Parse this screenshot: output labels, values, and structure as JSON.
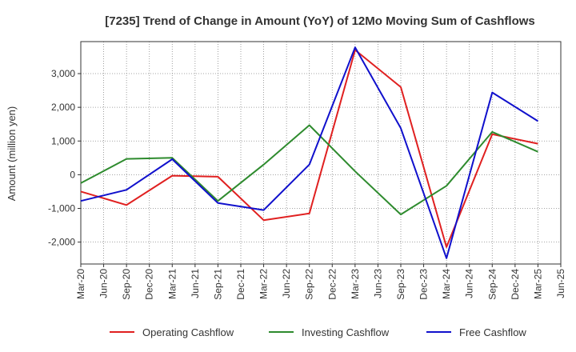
{
  "chart_data": {
    "type": "line",
    "title": "[7235]  Trend of Change in Amount (YoY) of 12Mo Moving Sum of Cashflows",
    "xlabel": "",
    "ylabel": "Amount (million yen)",
    "ylim": [
      -2650,
      3950
    ],
    "yticks": [
      3000,
      2000,
      1000,
      0,
      -1000,
      -2000
    ],
    "ytick_labels": [
      "3,000",
      "2,000",
      "1,000",
      "0",
      "-1,000",
      "-2,000"
    ],
    "categories": [
      "Mar-20",
      "Jun-20",
      "Sep-20",
      "Dec-20",
      "Mar-21",
      "Jun-21",
      "Sep-21",
      "Dec-21",
      "Mar-22",
      "Jun-22",
      "Sep-22",
      "Dec-22",
      "Mar-23",
      "Jun-23",
      "Sep-23",
      "Dec-23",
      "Mar-24",
      "Jun-24",
      "Sep-24",
      "Dec-24",
      "Mar-25",
      "Jun-25"
    ],
    "grid": true,
    "legend_position": "bottom",
    "series": [
      {
        "name": "Operating Cashflow",
        "color": "#e02020",
        "points": [
          {
            "x": "Mar-20",
            "y": -500
          },
          {
            "x": "Sep-20",
            "y": -900
          },
          {
            "x": "Mar-21",
            "y": -30
          },
          {
            "x": "Sep-21",
            "y": -60
          },
          {
            "x": "Mar-22",
            "y": -1350
          },
          {
            "x": "Sep-22",
            "y": -1150
          },
          {
            "x": "Mar-23",
            "y": 3700
          },
          {
            "x": "Sep-23",
            "y": 2600
          },
          {
            "x": "Mar-24",
            "y": -2150
          },
          {
            "x": "Sep-24",
            "y": 1200
          },
          {
            "x": "Mar-25",
            "y": 920
          }
        ]
      },
      {
        "name": "Investing Cashflow",
        "color": "#2e8b2e",
        "points": [
          {
            "x": "Mar-20",
            "y": -250
          },
          {
            "x": "Sep-20",
            "y": 470
          },
          {
            "x": "Mar-21",
            "y": 500
          },
          {
            "x": "Sep-21",
            "y": -780
          },
          {
            "x": "Mar-22",
            "y": 300
          },
          {
            "x": "Sep-22",
            "y": 1470
          },
          {
            "x": "Mar-23",
            "y": 100
          },
          {
            "x": "Sep-23",
            "y": -1180
          },
          {
            "x": "Mar-24",
            "y": -330
          },
          {
            "x": "Sep-24",
            "y": 1270
          },
          {
            "x": "Mar-25",
            "y": 680
          }
        ]
      },
      {
        "name": "Free Cashflow",
        "color": "#1010cc",
        "points": [
          {
            "x": "Mar-20",
            "y": -780
          },
          {
            "x": "Sep-20",
            "y": -450
          },
          {
            "x": "Mar-21",
            "y": 460
          },
          {
            "x": "Sep-21",
            "y": -840
          },
          {
            "x": "Mar-22",
            "y": -1050
          },
          {
            "x": "Sep-22",
            "y": 300
          },
          {
            "x": "Mar-23",
            "y": 3780
          },
          {
            "x": "Sep-23",
            "y": 1380
          },
          {
            "x": "Mar-24",
            "y": -2480
          },
          {
            "x": "Sep-24",
            "y": 2440
          },
          {
            "x": "Mar-25",
            "y": 1590
          }
        ]
      }
    ]
  }
}
